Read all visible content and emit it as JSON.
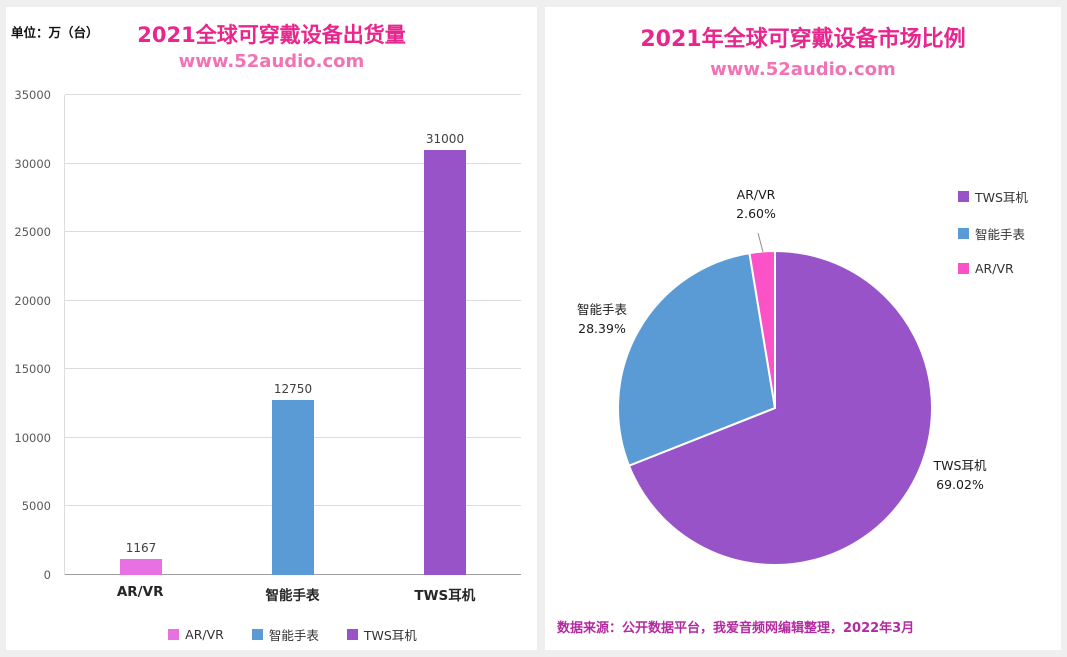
{
  "page": {
    "background": "#efefef",
    "panel_background": "#ffffff"
  },
  "colors": {
    "title": "#e9258e",
    "subtitle": "#f272b6",
    "source_note": "#b42ba0",
    "grid": "#dcdcdc",
    "axis_line": "#9e9e9e",
    "axis_text": "#595959"
  },
  "bar_chart": {
    "unit_label": "单位：万（台）",
    "title": "2021全球可穿戴设备出货量",
    "subtitle": "www.52audio.com"
  },
  "pie_chart": {
    "title": "2021年全球可穿戴设备市场比例",
    "subtitle": "www.52audio.com",
    "source_note": "数据来源：公开数据平台，我爱音频网编辑整理，2022年3月"
  },
  "chart_data": [
    {
      "type": "bar",
      "title": "2021全球可穿戴设备出货量",
      "subtitle": "www.52audio.com",
      "unit": "万（台）",
      "categories": [
        "AR/VR",
        "智能手表",
        "TWS耳机"
      ],
      "values": [
        1167,
        12750,
        31000
      ],
      "bar_colors": [
        "#e770e2",
        "#5b9bd5",
        "#9853c9"
      ],
      "ylim": [
        0,
        35000
      ],
      "ytick_step": 5000,
      "grid": true,
      "legend_position": "bottom",
      "legend": [
        "AR/VR",
        "智能手表",
        "TWS耳机"
      ]
    },
    {
      "type": "pie",
      "title": "2021年全球可穿戴设备市场比例",
      "subtitle": "www.52audio.com",
      "labels": [
        "TWS耳机",
        "智能手表",
        "AR/VR"
      ],
      "values": [
        69.02,
        28.39,
        2.6
      ],
      "value_suffix": "%",
      "slice_colors": [
        "#9853c9",
        "#5b9bd5",
        "#fb52c7"
      ],
      "start_angle_deg": 0,
      "direction": "clockwise",
      "legend_position": "right",
      "legend": [
        "TWS耳机",
        "智能手表",
        "AR/VR"
      ]
    }
  ]
}
